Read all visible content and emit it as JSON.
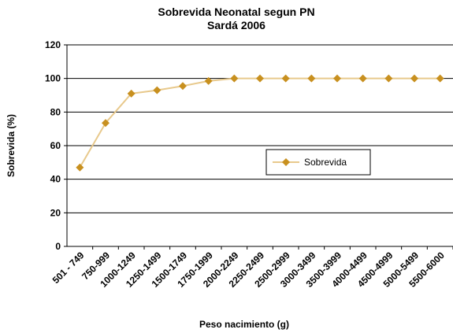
{
  "chart_data": {
    "type": "line",
    "title": "Sobrevida Neonatal segun PN",
    "subtitle": "Sardá 2006",
    "x_label": "Peso nacimiento (g)",
    "y_label": "Sobrevida (%)",
    "categories": [
      "501 - 749",
      "750-999",
      "1000-1249",
      "1250-1499",
      "1500-1749",
      "1750-1999",
      "2000-2249",
      "2250-2499",
      "2500-2999",
      "3000-3499",
      "3500-3999",
      "4000-4499",
      "4500-4999",
      "5000-5499",
      "5500-6000"
    ],
    "series": [
      {
        "name": "Sobrevida",
        "color": "#c8901f",
        "line_color": "#e8c98c",
        "values": [
          47,
          73.5,
          91,
          93,
          95.5,
          98.5,
          100,
          100,
          100,
          100,
          100,
          100,
          100,
          100,
          100
        ]
      }
    ],
    "ylim": [
      0,
      120
    ],
    "yticks": [
      0,
      20,
      40,
      60,
      80,
      100,
      120
    ],
    "grid": true,
    "legend": "right"
  }
}
